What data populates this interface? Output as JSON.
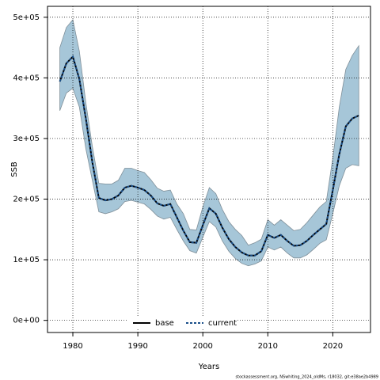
{
  "chart_data": {
    "type": "line",
    "xlabel": "Years",
    "ylabel": "SSB",
    "footnote": "stockassessment.org, NSwhiting_2024_oldMs, r18032, git:e38ae2b4989",
    "x": [
      1978,
      1979,
      1980,
      1981,
      1982,
      1983,
      1984,
      1985,
      1986,
      1987,
      1988,
      1989,
      1990,
      1991,
      1992,
      1993,
      1994,
      1995,
      1996,
      1997,
      1998,
      1999,
      2000,
      2001,
      2002,
      2003,
      2004,
      2005,
      2006,
      2007,
      2008,
      2009,
      2010,
      2011,
      2012,
      2013,
      2014,
      2015,
      2016,
      2017,
      2018,
      2019,
      2020,
      2021,
      2022,
      2023,
      2024
    ],
    "series": [
      {
        "name": "base",
        "color": "#000000",
        "dashed": false,
        "values": [
          394000,
          424000,
          435000,
          398000,
          333000,
          261000,
          202000,
          198000,
          200000,
          206000,
          219000,
          222000,
          219000,
          215000,
          206000,
          193000,
          189000,
          192000,
          170000,
          148000,
          129000,
          128000,
          157000,
          185000,
          176000,
          153000,
          134000,
          121000,
          112000,
          107000,
          107000,
          114000,
          141000,
          136000,
          141000,
          131000,
          123000,
          124000,
          131000,
          141000,
          150000,
          159000,
          215000,
          274000,
          320000,
          333000,
          338000
        ]
      },
      {
        "name": "current",
        "color": "#1a4f8a",
        "dashed": true,
        "values": [
          394000,
          424000,
          435000,
          398000,
          333000,
          261000,
          202000,
          198000,
          200000,
          206000,
          219000,
          222000,
          219000,
          215000,
          206000,
          193000,
          189000,
          192000,
          170000,
          148000,
          129000,
          128000,
          157000,
          185000,
          176000,
          153000,
          134000,
          121000,
          112000,
          107000,
          107000,
          114000,
          141000,
          136000,
          141000,
          131000,
          123000,
          124000,
          131000,
          141000,
          150000,
          159000,
          215000,
          274000,
          320000,
          333000,
          338000
        ]
      }
    ],
    "band": {
      "color": "#a6c6d8",
      "upper": [
        450000,
        483000,
        496000,
        444000,
        359000,
        287000,
        226000,
        225000,
        225000,
        231000,
        251000,
        251000,
        247000,
        244000,
        232000,
        218000,
        213000,
        215000,
        192000,
        176000,
        150000,
        149000,
        187000,
        219000,
        209000,
        183000,
        163000,
        150000,
        140000,
        124000,
        128000,
        134000,
        166000,
        157000,
        166000,
        157000,
        148000,
        150000,
        161000,
        174000,
        187000,
        196000,
        268000,
        352000,
        414000,
        437000,
        453000
      ],
      "lower": [
        346000,
        375000,
        383000,
        352000,
        283000,
        231000,
        179000,
        176000,
        179000,
        184000,
        196000,
        198000,
        195000,
        192000,
        183000,
        172000,
        167000,
        170000,
        150000,
        131000,
        115000,
        111000,
        137000,
        163000,
        154000,
        131000,
        114000,
        102000,
        94000,
        90000,
        93000,
        98000,
        121000,
        116000,
        121000,
        111000,
        103000,
        103000,
        108000,
        117000,
        127000,
        133000,
        176000,
        222000,
        251000,
        257000,
        255000
      ]
    },
    "xlim": [
      1976.1,
      2025.8
    ],
    "ylim": [
      -20000,
      518000
    ],
    "xticks": [
      1980,
      1990,
      2000,
      2010,
      2020
    ],
    "yticks": [
      {
        "value": 0,
        "label": "0e+00"
      },
      {
        "value": 100000,
        "label": "1e+05"
      },
      {
        "value": 200000,
        "label": "2e+05"
      },
      {
        "value": 300000,
        "label": "3e+05"
      },
      {
        "value": 400000,
        "label": "4e+05"
      },
      {
        "value": 500000,
        "label": "5e+05"
      }
    ],
    "grid": true,
    "legend": "bottom"
  }
}
